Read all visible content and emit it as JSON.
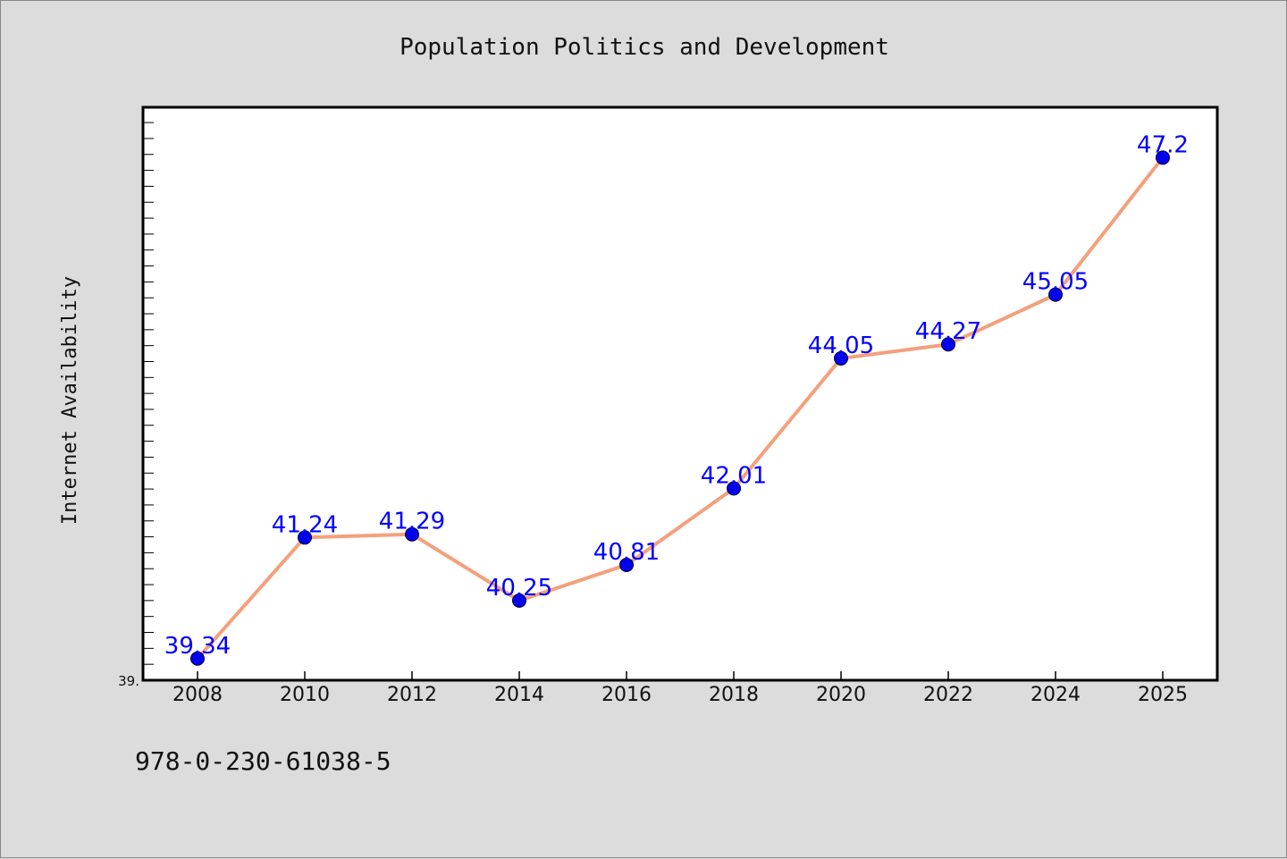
{
  "chart_data": {
    "type": "line",
    "title": "Population Politics and Development",
    "xlabel": "",
    "ylabel": "Internet Availability",
    "categories": [
      "2008",
      "2010",
      "2012",
      "2014",
      "2016",
      "2018",
      "2020",
      "2022",
      "2024",
      "2025"
    ],
    "series": [
      {
        "values": [
          39.34,
          41.24,
          41.29,
          40.25,
          40.81,
          42.01,
          44.05,
          44.27,
          45.05,
          47.2
        ],
        "labels": [
          "39.34",
          "41.24",
          "41.29",
          "40.25",
          "40.81",
          "42.01",
          "44.05",
          "44.27",
          "45.05",
          "47.2"
        ]
      }
    ],
    "ylim": [
      39.0,
      47.99
    ],
    "y_tick_label": "39.",
    "grid": false,
    "colors": {
      "line": "#f4a07c",
      "marker": "#0000ee",
      "label": "#0000ff",
      "plot_background": "#ffffff",
      "page_background": "#dcdcdc"
    }
  },
  "footer": {
    "isbn": "978-0-230-61038-5"
  }
}
